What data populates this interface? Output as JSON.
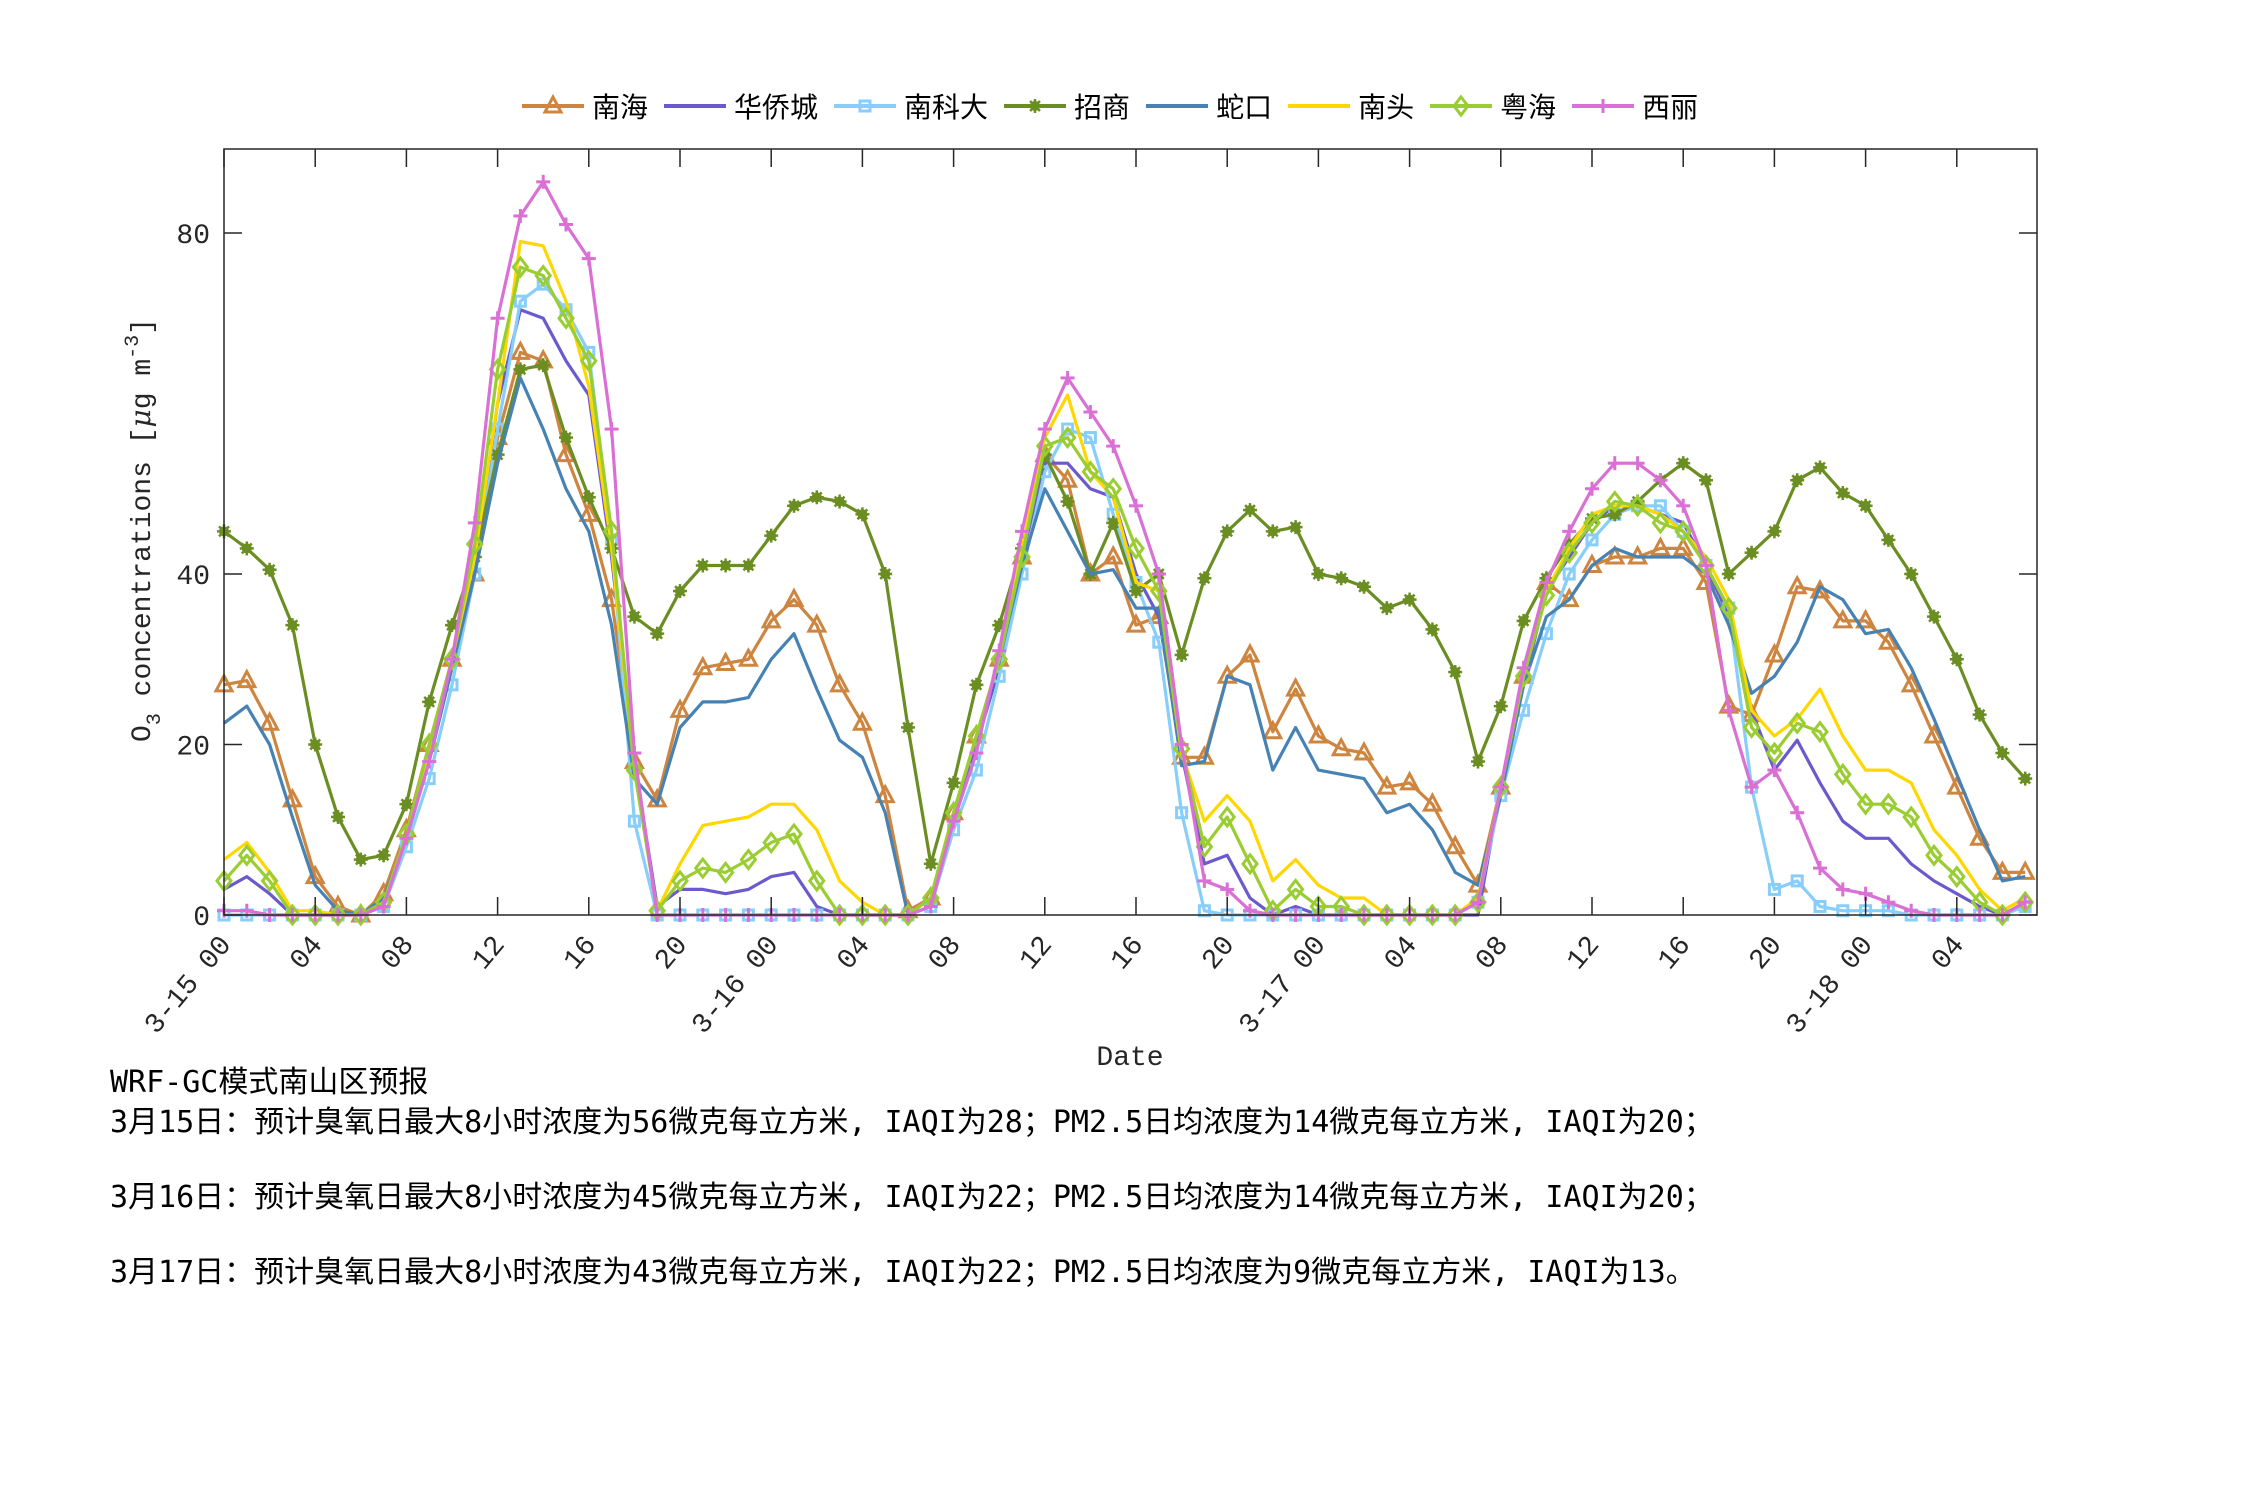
{
  "legend": [
    {
      "name": "南海",
      "color": "#cd853f",
      "marker": "triangle"
    },
    {
      "name": "华侨城",
      "color": "#6a5acd",
      "marker": "none"
    },
    {
      "name": "南科大",
      "color": "#87cefa",
      "marker": "square"
    },
    {
      "name": "招商",
      "color": "#6b8e23",
      "marker": "star"
    },
    {
      "name": "蛇口",
      "color": "#4682b4",
      "marker": "none"
    },
    {
      "name": "南头",
      "color": "#ffd700",
      "marker": "none"
    },
    {
      "name": "粤海",
      "color": "#9acd32",
      "marker": "diamond"
    },
    {
      "name": "西丽",
      "color": "#da70d6",
      "marker": "plus"
    }
  ],
  "axes": {
    "xlabel": "Date",
    "ylabel": "O3 concentrations [μg m-3]",
    "yticks": [
      "0",
      "20",
      "40",
      "80"
    ],
    "xticks": [
      {
        "hour": 0,
        "label": "00",
        "date": "3-15"
      },
      {
        "hour": 4,
        "label": "04"
      },
      {
        "hour": 8,
        "label": "08"
      },
      {
        "hour": 12,
        "label": "12"
      },
      {
        "hour": 16,
        "label": "16"
      },
      {
        "hour": 20,
        "label": "20"
      },
      {
        "hour": 24,
        "label": "00",
        "date": "3-16"
      },
      {
        "hour": 28,
        "label": "04"
      },
      {
        "hour": 32,
        "label": "08"
      },
      {
        "hour": 36,
        "label": "12"
      },
      {
        "hour": 40,
        "label": "16"
      },
      {
        "hour": 44,
        "label": "20"
      },
      {
        "hour": 48,
        "label": "00",
        "date": "3-17"
      },
      {
        "hour": 52,
        "label": "04"
      },
      {
        "hour": 56,
        "label": "08"
      },
      {
        "hour": 60,
        "label": "12"
      },
      {
        "hour": 64,
        "label": "16"
      },
      {
        "hour": 68,
        "label": "20"
      },
      {
        "hour": 72,
        "label": "00",
        "date": "3-18"
      },
      {
        "hour": 76,
        "label": "04"
      }
    ]
  },
  "summary": {
    "title": "WRF-GC模式南山区预报",
    "lines": [
      "3月15日：预计臭氧日最大8小时浓度为56微克每立方米, IAQI为28；PM2.5日均浓度为14微克每立方米, IAQI为20；",
      "3月16日：预计臭氧日最大8小时浓度为45微克每立方米, IAQI为22；PM2.5日均浓度为14微克每立方米, IAQI为20；",
      "3月17日：预计臭氧日最大8小时浓度为43微克每立方米, IAQI为22；PM2.5日均浓度为9微克每立方米, IAQI为13。"
    ]
  },
  "chart_data": {
    "type": "line",
    "title": "",
    "xlabel": "Date",
    "ylabel": "O3 concentrations [μg m^-3]",
    "ylim": [
      0,
      90
    ],
    "xlim_hours": [
      0,
      79
    ],
    "x_start": "3-15 00",
    "x_step": "1 hour",
    "grid": false,
    "legend_position": "top (outside)",
    "series": [
      {
        "name": "南海",
        "values": [
          27,
          27.5,
          22.5,
          13.5,
          4.5,
          1,
          0,
          2.5,
          10,
          20,
          30,
          40,
          56,
          66,
          65,
          54,
          47,
          37,
          18,
          13.5,
          24,
          29,
          29.5,
          30,
          34.5,
          37,
          34,
          27,
          22.5,
          14,
          0.5,
          2,
          12,
          21,
          30,
          42,
          54,
          51,
          40,
          42,
          34,
          35,
          18.5,
          18.5,
          28,
          30.5,
          21.5,
          26.5,
          21,
          19.5,
          19,
          15,
          15.5,
          13,
          8,
          3.5,
          15,
          28,
          39,
          37,
          41,
          42,
          42,
          43,
          43,
          39,
          24.5,
          23.5,
          30.5,
          38.5,
          38,
          34.5,
          34.5,
          32,
          27,
          21,
          15,
          9,
          5,
          5
        ]
      },
      {
        "name": "华侨城",
        "values": [
          3,
          4.5,
          2.5,
          0,
          0,
          0,
          0,
          1.5,
          9,
          19,
          30,
          41,
          60,
          71,
          70,
          65,
          61,
          42,
          18,
          1,
          3,
          3,
          2.5,
          3,
          4.5,
          5,
          1,
          0,
          0,
          0,
          0,
          1,
          11,
          20,
          29,
          42,
          53,
          53,
          50,
          49,
          40,
          35,
          19,
          6,
          7,
          2,
          0,
          1,
          0,
          0,
          0,
          0,
          0,
          0,
          0,
          0,
          15,
          27,
          38,
          42,
          46,
          48,
          48,
          47,
          46,
          41,
          35,
          24,
          17,
          20.5,
          15.5,
          11,
          9,
          9,
          6,
          4,
          2.5,
          1,
          0,
          1.5
        ]
      },
      {
        "name": "南科大",
        "values": [
          0,
          0,
          0,
          0,
          0,
          0,
          0,
          1,
          8,
          16,
          27,
          40,
          57,
          72,
          74,
          71,
          66,
          44,
          11,
          0,
          0,
          0,
          0,
          0,
          0,
          0,
          0,
          0,
          0,
          0,
          0,
          1,
          10,
          17,
          28,
          40,
          52,
          57,
          56,
          47,
          39,
          32,
          12,
          0.5,
          0,
          0,
          0,
          0,
          0,
          0,
          0,
          0,
          0,
          0,
          0,
          1.5,
          14,
          24,
          33,
          40,
          44,
          47,
          48,
          48,
          45,
          41,
          36,
          15,
          3,
          4,
          1,
          0.5,
          0.5,
          0.5,
          0,
          0,
          0,
          0,
          0,
          1
        ]
      },
      {
        "name": "招商",
        "values": [
          45,
          43,
          40.5,
          34,
          20,
          11.5,
          6.5,
          7,
          13,
          25,
          34,
          42,
          54,
          64,
          64.5,
          56,
          49,
          43,
          35,
          33,
          38,
          41,
          41,
          41,
          44.5,
          48,
          49,
          48.5,
          47,
          40,
          22,
          6,
          15.5,
          27,
          34,
          43,
          54,
          48.5,
          40,
          46,
          38,
          40,
          30.5,
          39.5,
          45,
          47.5,
          45,
          45.5,
          40,
          39.5,
          38.5,
          36,
          37,
          33.5,
          28.5,
          18,
          24.5,
          34.5,
          39.5,
          43.5,
          46.5,
          47,
          48.5,
          51,
          53,
          51,
          40,
          42.5,
          45,
          51,
          52.5,
          49.5,
          48,
          44,
          40,
          35,
          30,
          23.5,
          19,
          16
        ]
      },
      {
        "name": "蛇口",
        "values": [
          22.5,
          24.5,
          20,
          11.5,
          3.5,
          0.5,
          0,
          2,
          9,
          18,
          29,
          40,
          53,
          63,
          57,
          50,
          45,
          34,
          16,
          13,
          22,
          25,
          25,
          25.5,
          30,
          33,
          26.5,
          20.5,
          18.5,
          12,
          0,
          2,
          12,
          21,
          30,
          41,
          50,
          45,
          40,
          40.5,
          36,
          36,
          17.5,
          18,
          28,
          27,
          17,
          22,
          17,
          16.5,
          16,
          12,
          13,
          10,
          5,
          3.5,
          14,
          27,
          35,
          37,
          41,
          43,
          42,
          42,
          42,
          40,
          34,
          26,
          28,
          32,
          38.5,
          37,
          33,
          33.5,
          29,
          23,
          16.5,
          10,
          4,
          4.5
        ]
      },
      {
        "name": "南头",
        "values": [
          6.5,
          8.5,
          5,
          0.5,
          0.5,
          0,
          0,
          1.5,
          9,
          19,
          30,
          42,
          60,
          79,
          78.5,
          72,
          62,
          43,
          17,
          0.5,
          6,
          10.5,
          11,
          11.5,
          13,
          13,
          10,
          4,
          1.5,
          0,
          0,
          2,
          12,
          21,
          30,
          43,
          56,
          61,
          52,
          49,
          39,
          38,
          19,
          11,
          14,
          11,
          4,
          6.5,
          3.5,
          2,
          2,
          0,
          0,
          0,
          0,
          2,
          15,
          28,
          38,
          43,
          47,
          48,
          48,
          47,
          45,
          42,
          37,
          24,
          21,
          23,
          26.5,
          21,
          17,
          17,
          15.5,
          10,
          7,
          3,
          0.5,
          2
        ]
      },
      {
        "name": "粤海",
        "values": [
          4,
          7,
          4,
          0,
          0,
          0,
          0,
          1.5,
          9.5,
          20,
          30,
          43.5,
          64,
          76,
          75,
          70,
          65,
          45,
          17,
          0.5,
          4,
          5.5,
          5,
          6.5,
          8.5,
          9.5,
          4,
          0,
          0,
          0,
          0,
          2,
          12,
          21,
          30,
          42,
          55,
          56,
          52,
          50,
          43,
          38,
          19.5,
          8,
          11.5,
          6,
          0.5,
          3,
          1,
          1,
          0,
          0,
          0,
          0,
          0,
          1.5,
          15,
          28,
          37.5,
          42.5,
          46,
          48.5,
          48,
          46,
          45,
          41,
          36,
          22,
          19,
          22.5,
          21.5,
          16.5,
          13,
          13,
          11.5,
          7,
          4.5,
          1.5,
          0,
          1.5
        ]
      },
      {
        "name": "西丽",
        "values": [
          0.5,
          0.5,
          0,
          0,
          0,
          0,
          0,
          1,
          9,
          18,
          30,
          46,
          70,
          82,
          86,
          81,
          77,
          57,
          19,
          0,
          0,
          0,
          0,
          0,
          0,
          0,
          0,
          0,
          0,
          0,
          0,
          1,
          11,
          19,
          31,
          45,
          57,
          63,
          59,
          55,
          48,
          40,
          20,
          4,
          3,
          0.5,
          0,
          0,
          0,
          0,
          0,
          0,
          0,
          0,
          0,
          1.5,
          15,
          29,
          39,
          45,
          50,
          53,
          53,
          51,
          48,
          41,
          24,
          15,
          17,
          12,
          5.5,
          3,
          2.5,
          1.5,
          0.5,
          0,
          0,
          0,
          0,
          1.5
        ]
      }
    ]
  }
}
